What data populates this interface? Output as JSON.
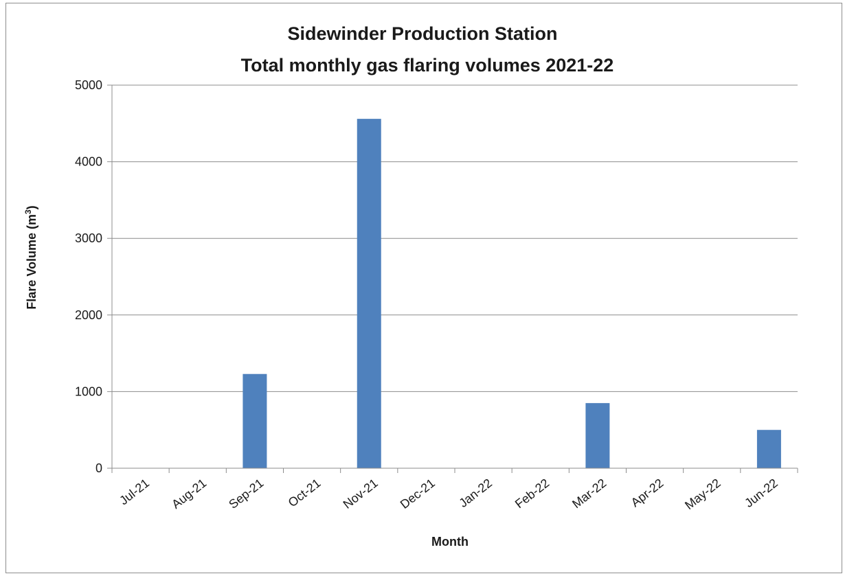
{
  "chart_data": {
    "type": "bar",
    "title": "Sidewinder Production Station",
    "subtitle": "Total monthly gas flaring volumes 2021-22",
    "xlabel": "Month",
    "ylabel_main": "Flare Volume (m",
    "ylabel_sup": "3",
    "ylabel_end": ")",
    "categories": [
      "Jul-21",
      "Aug-21",
      "Sep-21",
      "Oct-21",
      "Nov-21",
      "Dec-21",
      "Jan-22",
      "Feb-22",
      "Mar-22",
      "Apr-22",
      "May-22",
      "Jun-22"
    ],
    "values": [
      0,
      0,
      1230,
      0,
      4560,
      0,
      0,
      0,
      850,
      0,
      0,
      500
    ],
    "ylim": [
      0,
      5000
    ],
    "yticks": [
      0,
      1000,
      2000,
      3000,
      4000,
      5000
    ],
    "grid": true,
    "legend": "none",
    "bar_color": "#4f81bd"
  }
}
